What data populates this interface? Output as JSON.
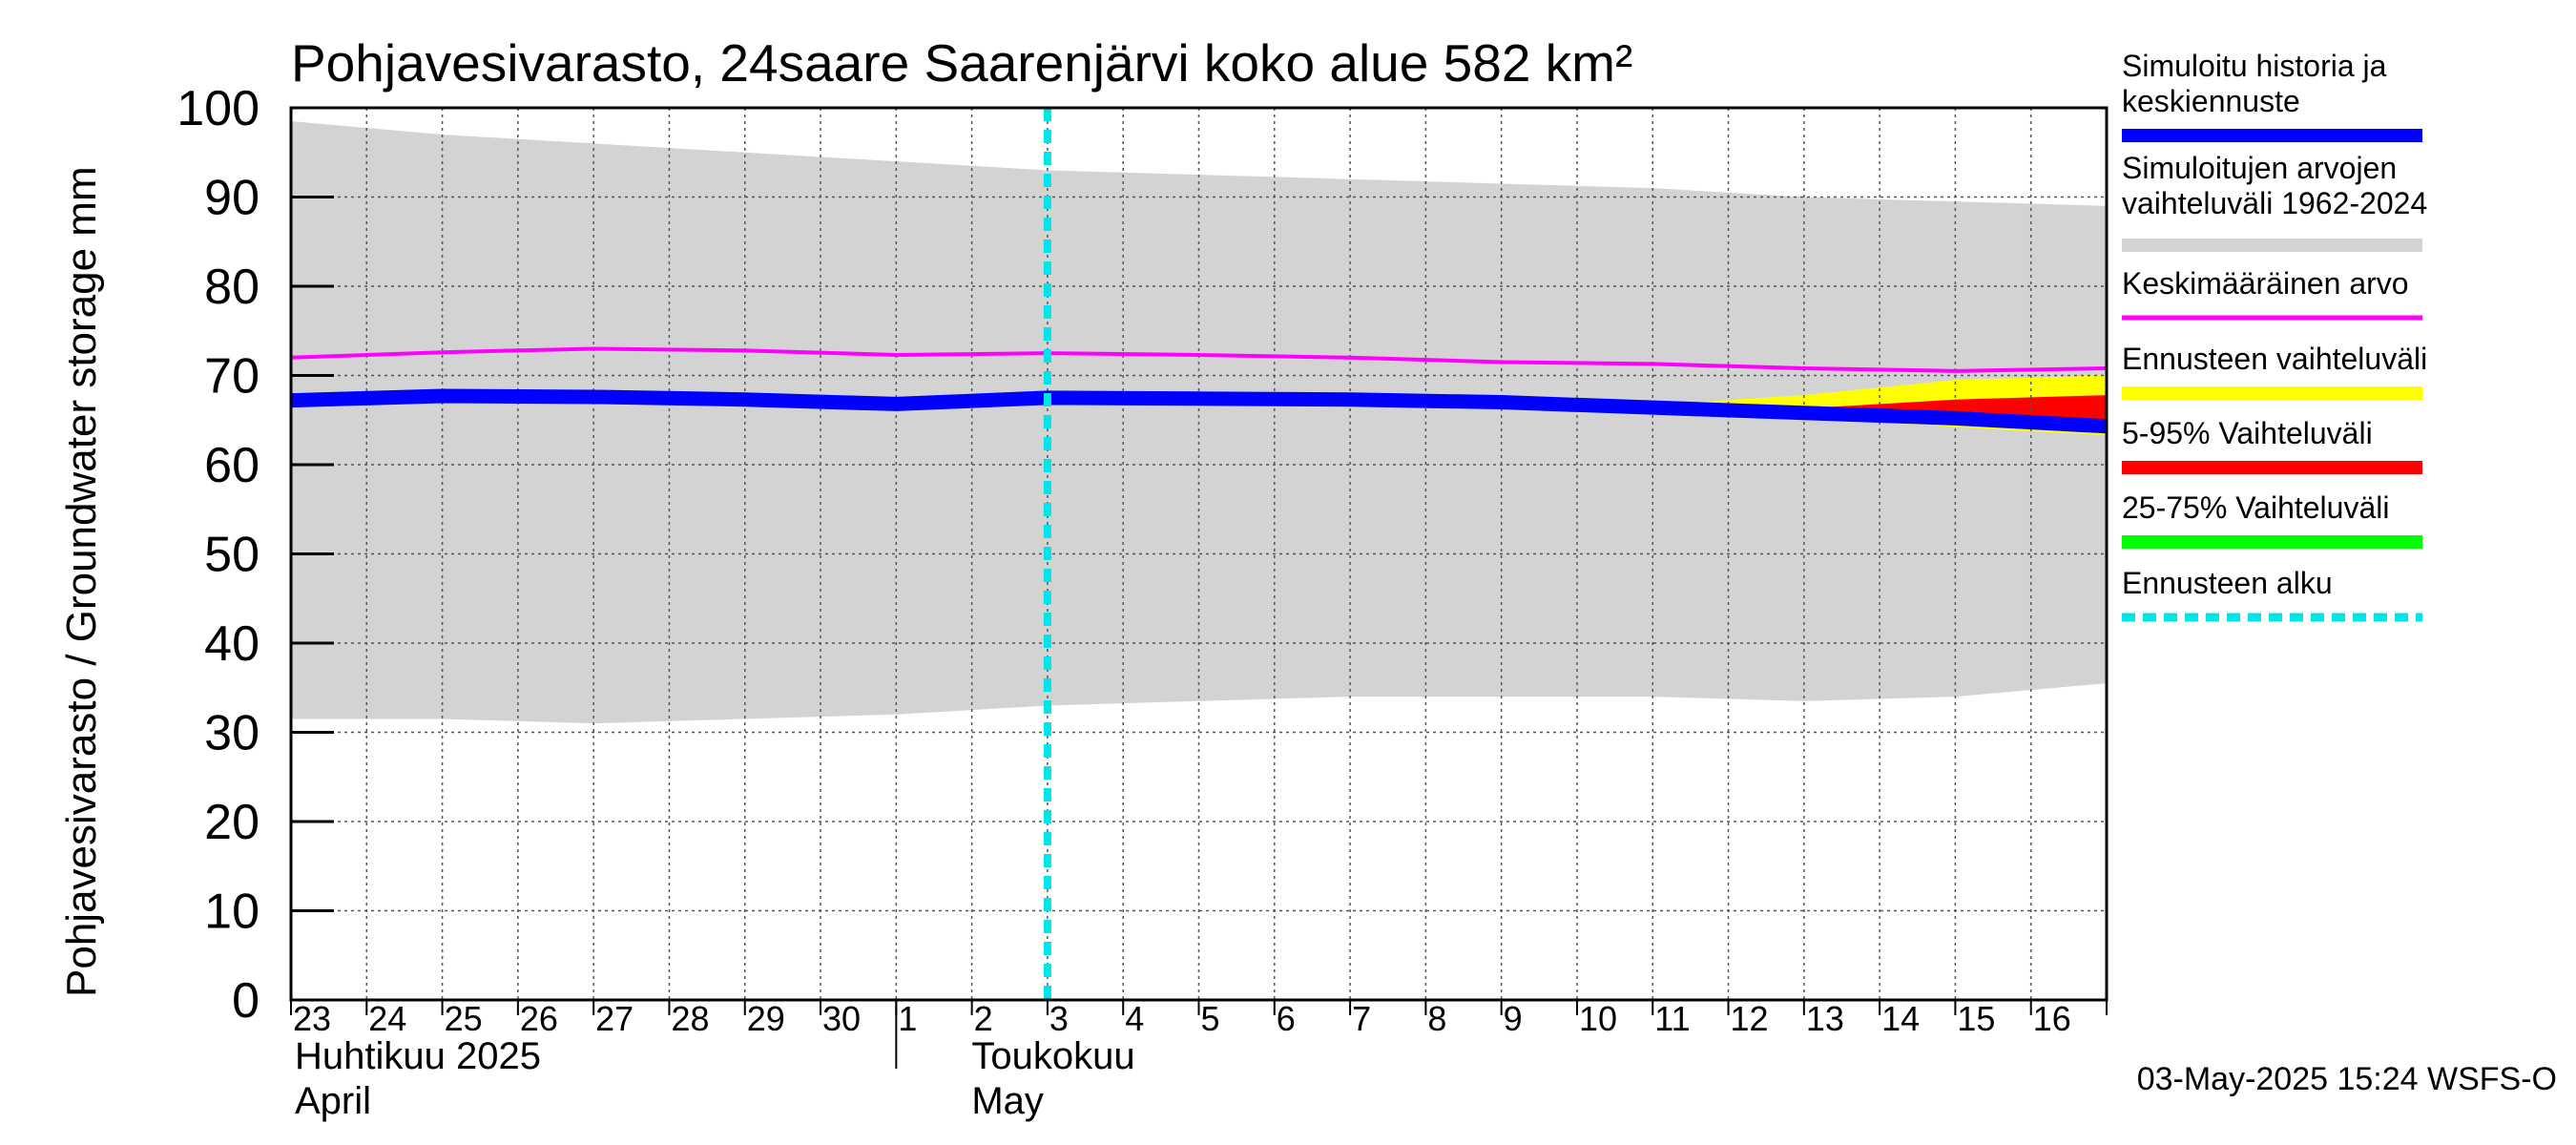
{
  "chart_data": {
    "type": "area",
    "title": "Pohjavesivarasto, 24saare Saarenjärvi koko alue 582 km²",
    "ylabel": "Pohjavesivarasto / Groundwater storage   mm",
    "ylim": [
      0,
      100
    ],
    "yticks": [
      "0",
      "10",
      "20",
      "30",
      "40",
      "50",
      "60",
      "70",
      "80",
      "90",
      "100"
    ],
    "day_labels": [
      "23",
      "24",
      "25",
      "26",
      "27",
      "28",
      "29",
      "30",
      "1",
      "2",
      "3",
      "4",
      "5",
      "6",
      "7",
      "8",
      "9",
      "10",
      "11",
      "12",
      "13",
      "14",
      "15",
      "16"
    ],
    "x_start_day": 23,
    "x_end_day": 47,
    "month_boundary_day": 31,
    "months": [
      {
        "line1": "Huhtikuu  2025",
        "line2": "April"
      },
      {
        "line1": "Toukokuu",
        "line2": "May"
      }
    ],
    "x": [
      23,
      25,
      27,
      29,
      31,
      33,
      35,
      37,
      39,
      41,
      43,
      45,
      47
    ],
    "range_upper": [
      98.5,
      97.0,
      96.0,
      95.0,
      94.0,
      93.0,
      92.5,
      92.0,
      91.5,
      91.0,
      90.0,
      89.5,
      89.0
    ],
    "range_lower": [
      31.5,
      31.5,
      31.0,
      31.5,
      32.0,
      33.0,
      33.5,
      34.0,
      34.0,
      34.0,
      33.5,
      34.0,
      35.5
    ],
    "mean": [
      72.0,
      72.6,
      73.0,
      72.8,
      72.3,
      72.5,
      72.3,
      72.0,
      71.5,
      71.3,
      70.8,
      70.5,
      70.8
    ],
    "history": [
      67.2,
      67.7,
      67.6,
      67.3,
      66.8,
      67.5,
      67.4,
      67.3,
      67.0,
      66.4,
      65.8,
      65.2,
      64.3
    ],
    "forecast_x": [
      41,
      43,
      45,
      47
    ],
    "forecast_envelope_upper": [
      66.7,
      67.8,
      69.5,
      70.0
    ],
    "forecast_envelope_lower": [
      66.2,
      65.3,
      64.2,
      63.3
    ],
    "p5_95_upper": [
      66.5,
      66.3,
      67.3,
      67.8
    ],
    "p5_95_lower": [
      66.2,
      65.5,
      64.6,
      63.6
    ],
    "p25_75_upper": [
      66.4,
      65.9,
      65.6,
      65.0
    ],
    "p25_75_lower": [
      66.2,
      65.6,
      64.9,
      64.1
    ],
    "forecast_start_day": 33,
    "legend": [
      {
        "label": "Simuloitu historia ja keskiennuste",
        "color": "#0000ff"
      },
      {
        "label": "Simuloitujen arvojen vaihteluväli 1962-2024",
        "color": "#d3d3d3"
      },
      {
        "label": "Keskimääräinen arvo",
        "color": "#ff00ff"
      },
      {
        "label": "Ennusteen vaihteluväli",
        "color": "#ffff00"
      },
      {
        "label": "5-95% Vaihteluväli",
        "color": "#ff0000"
      },
      {
        "label": "25-75% Vaihteluväli",
        "color": "#00ff00"
      },
      {
        "label": "Ennusteen alku",
        "color": "#00e5e5"
      }
    ],
    "footer": "03-May-2025 15:24 WSFS-O"
  }
}
